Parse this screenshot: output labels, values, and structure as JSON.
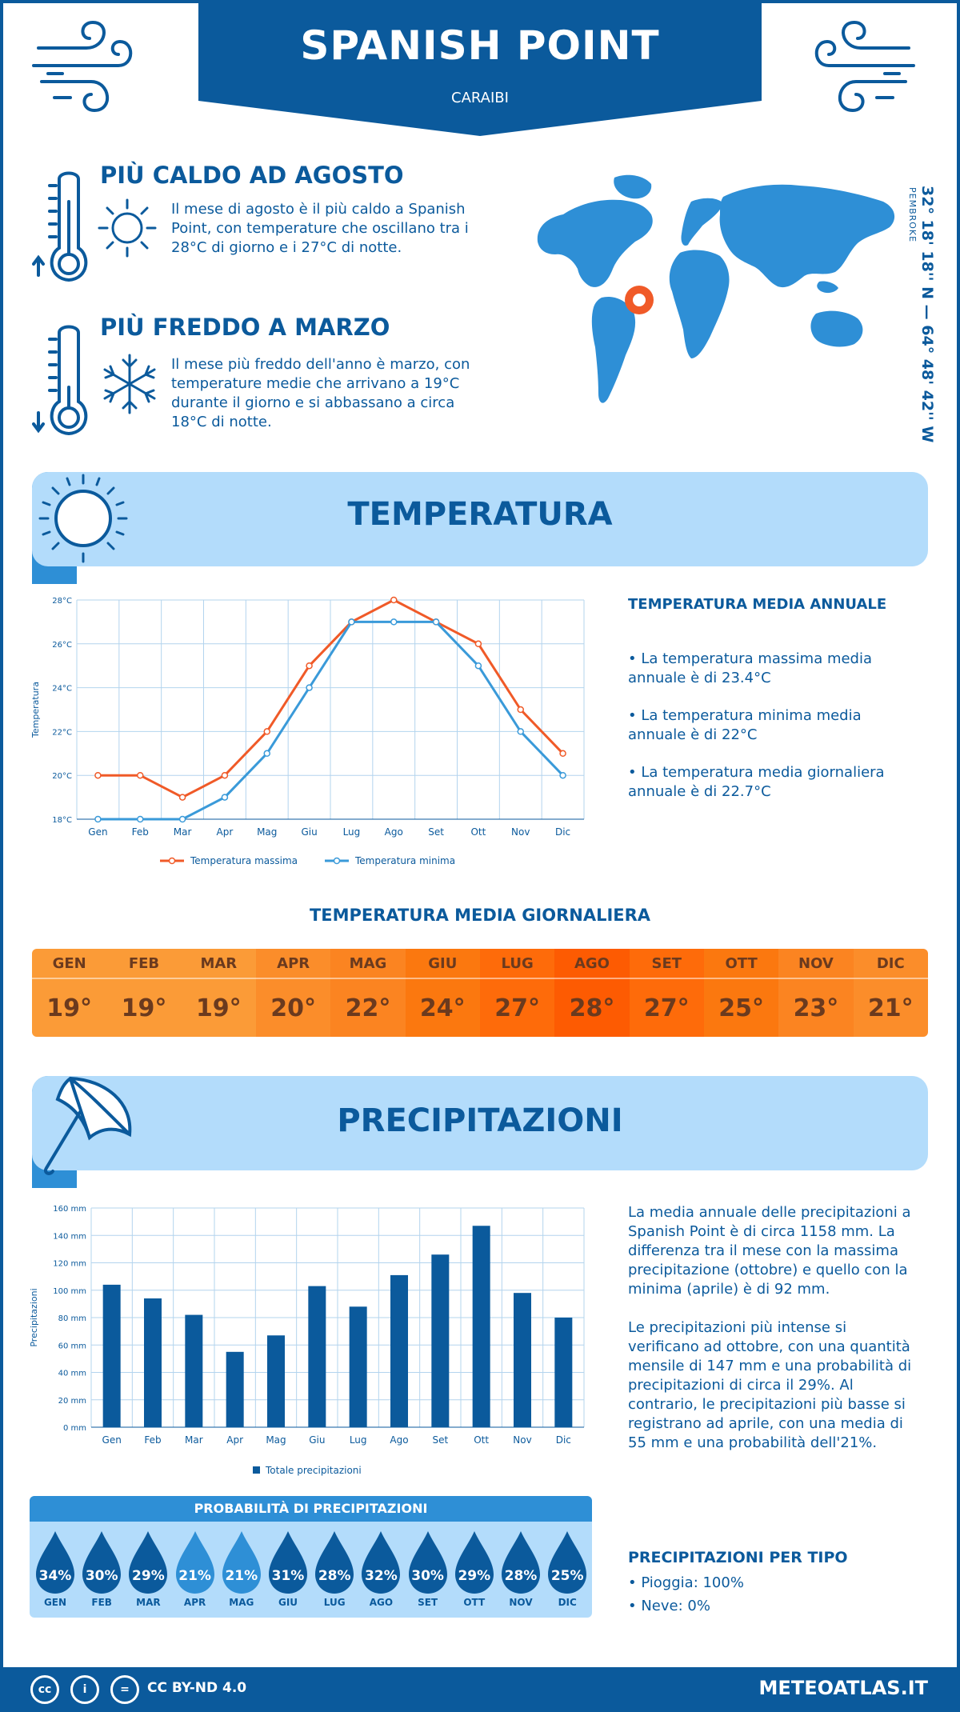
{
  "header": {
    "title": "SPANISH POINT",
    "subtitle": "CARAIBI"
  },
  "location": {
    "coords": "32° 18' 18'' N — 64° 48' 42'' W",
    "region": "PEMBROKE"
  },
  "warmest": {
    "title": "PIÙ CALDO AD AGOSTO",
    "text": "Il mese di agosto è il più caldo a Spanish Point, con temperature che oscillano tra i 28°C di giorno e i 27°C di notte."
  },
  "coldest": {
    "title": "PIÙ FREDDO A MARZO",
    "text": "Il mese più freddo dell'anno è marzo, con temperature medie che arrivano a 19°C durante il giorno e si abbassano a circa 18°C di notte."
  },
  "temperature_section": {
    "title": "TEMPERATURA",
    "side_heading": "TEMPERATURA MEDIA ANNUALE",
    "bullets": [
      "• La temperatura massima media annuale è di 23.4°C",
      "• La temperatura minima media annuale è di 22°C",
      "• La temperatura media giornaliera annuale è di 22.7°C"
    ]
  },
  "daily": {
    "heading": "TEMPERATURA MEDIA GIORNALIERA",
    "months": [
      "GEN",
      "FEB",
      "MAR",
      "APR",
      "MAG",
      "GIU",
      "LUG",
      "AGO",
      "SET",
      "OTT",
      "NOV",
      "DIC"
    ],
    "values": [
      "19°",
      "19°",
      "19°",
      "20°",
      "22°",
      "24°",
      "27°",
      "28°",
      "27°",
      "25°",
      "23°",
      "21°"
    ],
    "colors": [
      "#fb9b37",
      "#fb9b37",
      "#fb9b37",
      "#fb8d2a",
      "#fb8421",
      "#fb780f",
      "#fe6b0a",
      "#fd5b02",
      "#fe6b0a",
      "#fb780f",
      "#fb8421",
      "#fb8d2a"
    ]
  },
  "precip_section": {
    "title": "PRECIPITAZIONI",
    "text1": "La media annuale delle precipitazioni a Spanish Point è di circa 1158 mm. La differenza tra il mese con la massima precipitazione (ottobre) e quello con la minima (aprile) è di 92 mm.",
    "text2": "Le precipitazioni più intense si verificano ad ottobre, con una quantità mensile di 147 mm e una probabilità di precipitazioni di circa il 29%. Al contrario, le precipitazioni più basse si registrano ad aprile, con una media di 55 mm e una probabilità dell'21%."
  },
  "probability": {
    "heading": "PROBABILITÀ DI PRECIPITAZIONI",
    "months": [
      "GEN",
      "FEB",
      "MAR",
      "APR",
      "MAG",
      "GIU",
      "LUG",
      "AGO",
      "SET",
      "OTT",
      "NOV",
      "DIC"
    ],
    "values": [
      "34%",
      "30%",
      "29%",
      "21%",
      "21%",
      "31%",
      "28%",
      "32%",
      "30%",
      "29%",
      "28%",
      "25%"
    ],
    "light": [
      false,
      false,
      false,
      true,
      true,
      false,
      false,
      false,
      false,
      false,
      false,
      false
    ]
  },
  "precip_type": {
    "heading": "PRECIPITAZIONI PER TIPO",
    "rain": "• Pioggia: 100%",
    "snow": "• Neve: 0%"
  },
  "footer": {
    "license": "CC BY-ND 4.0",
    "site": "METEOATLAS.IT"
  },
  "colors": {
    "primary": "#0b5a9c",
    "light_blue": "#b3dcfb",
    "mid_blue": "#2e8fd6",
    "max_line": "#f05a28",
    "min_line": "#3a9ad9"
  },
  "chart_data": [
    {
      "type": "line",
      "categories": [
        "Gen",
        "Feb",
        "Mar",
        "Apr",
        "Mag",
        "Giu",
        "Lug",
        "Ago",
        "Set",
        "Ott",
        "Nov",
        "Dic"
      ],
      "series": [
        {
          "name": "Temperatura massima",
          "values": [
            20,
            20,
            19,
            20,
            22,
            25,
            27,
            28,
            27,
            26,
            23,
            21
          ]
        },
        {
          "name": "Temperatura minima",
          "values": [
            18,
            18,
            18,
            19,
            21,
            24,
            27,
            27,
            27,
            25,
            22,
            20
          ]
        }
      ],
      "ylabel": "Temperatura",
      "yticks": [
        "18°C",
        "20°C",
        "22°C",
        "24°C",
        "26°C",
        "28°C"
      ],
      "ylim": [
        18,
        28
      ],
      "grid": true,
      "legend": "bottom"
    },
    {
      "type": "bar",
      "categories": [
        "Gen",
        "Feb",
        "Mar",
        "Apr",
        "Mag",
        "Giu",
        "Lug",
        "Ago",
        "Set",
        "Ott",
        "Nov",
        "Dic"
      ],
      "series": [
        {
          "name": "Totale precipitazioni",
          "values": [
            104,
            94,
            82,
            55,
            67,
            103,
            88,
            111,
            126,
            147,
            98,
            80
          ]
        }
      ],
      "ylabel": "Precipitazioni",
      "yticks": [
        "0 mm",
        "20 mm",
        "40 mm",
        "60 mm",
        "80 mm",
        "100 mm",
        "120 mm",
        "140 mm",
        "160 mm"
      ],
      "ylim": [
        0,
        160
      ],
      "grid": true,
      "legend": "bottom"
    }
  ]
}
